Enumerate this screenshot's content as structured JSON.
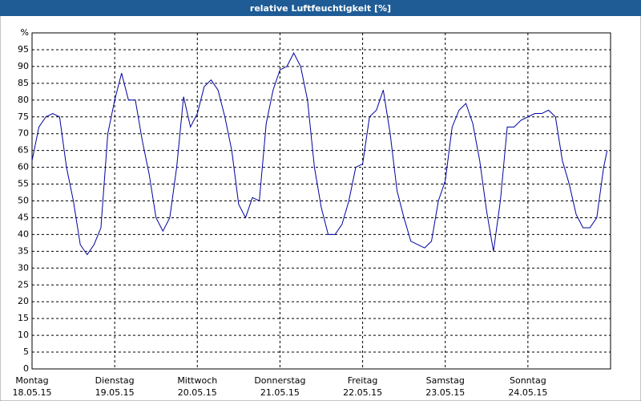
{
  "chart_data": {
    "type": "line",
    "title": "relative Luftfeuchtigkeit [%]",
    "x": [
      0,
      2,
      4,
      6,
      8,
      10,
      12,
      14,
      16,
      18,
      20,
      22,
      24,
      26,
      28,
      30,
      32,
      34,
      36,
      38,
      40,
      42,
      44,
      46,
      48,
      50,
      52,
      54,
      56,
      58,
      60,
      62,
      64,
      66,
      68,
      70,
      72,
      74,
      76,
      78,
      80,
      82,
      84,
      86,
      88,
      90,
      92,
      94,
      96,
      98,
      100,
      102,
      104,
      106,
      108,
      110,
      112,
      114,
      116,
      118,
      120,
      122,
      124,
      126,
      128,
      130,
      132,
      134,
      136,
      138,
      140,
      142,
      144,
      146,
      148,
      150,
      152,
      154,
      156,
      158,
      160,
      162,
      164,
      166,
      167
    ],
    "series": [
      {
        "name": "relative Luftfeuchtigkeit",
        "color": "#0000a0",
        "values": [
          62,
          72,
          75,
          76,
          75,
          60,
          50,
          37,
          34,
          37,
          42,
          70,
          80,
          88,
          80,
          80,
          68,
          58,
          45,
          41,
          45,
          60,
          81,
          72,
          76,
          84,
          86,
          83,
          75,
          65,
          49,
          45,
          51,
          50,
          73,
          83,
          89,
          90,
          94,
          90,
          80,
          60,
          48,
          40,
          40,
          43,
          50,
          60,
          61,
          75,
          77,
          83,
          70,
          53,
          45,
          38,
          37,
          36,
          38,
          50,
          56,
          72,
          77,
          79,
          73,
          62,
          47,
          35,
          50,
          72,
          72,
          74,
          75,
          76,
          76,
          77,
          75,
          62,
          55,
          46,
          42,
          42,
          45,
          60,
          65
        ]
      }
    ],
    "xlim": [
      0,
      168
    ],
    "xticks": [
      {
        "value": 0,
        "label": [
          "Montag",
          "18.05.15"
        ]
      },
      {
        "value": 24,
        "label": [
          "Dienstag",
          "19.05.15"
        ]
      },
      {
        "value": 48,
        "label": [
          "Mittwoch",
          "20.05.15"
        ]
      },
      {
        "value": 72,
        "label": [
          "Donnerstag",
          "21.05.15"
        ]
      },
      {
        "value": 96,
        "label": [
          "Freitag",
          "22.05.15"
        ]
      },
      {
        "value": 120,
        "label": [
          "Samstag",
          "23.05.15"
        ]
      },
      {
        "value": 144,
        "label": [
          "Sonntag",
          "24.05.15"
        ]
      }
    ],
    "ylim": [
      0,
      100
    ],
    "yticks": [
      0,
      5,
      10,
      15,
      20,
      25,
      30,
      35,
      40,
      45,
      50,
      55,
      60,
      65,
      70,
      75,
      80,
      85,
      90,
      95,
      {
        "value": 100,
        "label": "%"
      }
    ],
    "grid": true
  }
}
